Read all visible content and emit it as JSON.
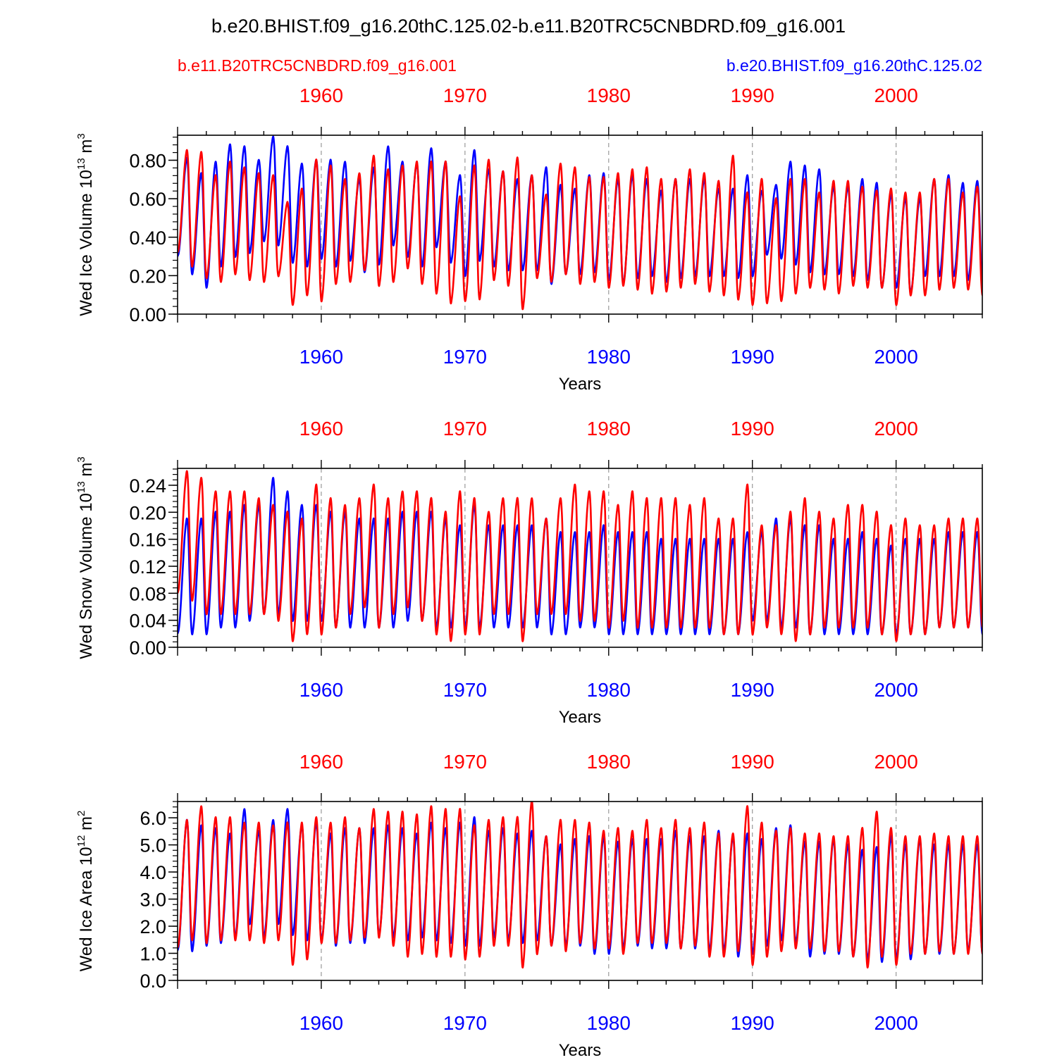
{
  "page_title": "b.e20.BHIST.f09_g16.20thC.125.02-b.e11.B20TRC5CNBDRD.f09_g16.001",
  "legend": {
    "red_label": "b.e11.B20TRC5CNBDRD.f09_g16.001",
    "blue_label": "b.e20.BHIST.f09_g16.20thC.125.02"
  },
  "colors": {
    "red": "#ff0000",
    "blue": "#0000ff",
    "axis": "#000000",
    "grid": "#999999"
  },
  "chart_data": [
    {
      "type": "line",
      "title": "",
      "ylabel_main": "Wed Ice Volume 10",
      "ylabel_exp": "13",
      "ylabel_unit": " m",
      "ylabel_unit_exp": "3",
      "xlabel": "Years",
      "xlim": [
        1950.0,
        2006.0
      ],
      "ylim": [
        0.0,
        0.93
      ],
      "yticks": [
        "0.00",
        "0.20",
        "0.40",
        "0.60",
        "0.80"
      ],
      "ytick_values": [
        0.0,
        0.2,
        0.4,
        0.6,
        0.8
      ],
      "yminor_step": 0.04,
      "xticks": [
        "1960",
        "1970",
        "1980",
        "1990",
        "2000"
      ],
      "xtick_values": [
        1960,
        1970,
        1980,
        1990,
        2000
      ],
      "series": [
        {
          "name": "b.e20.BHIST.f09_g16.20thC.125.02",
          "color": "blue",
          "start_year": 1950.0,
          "maxima": [
            0.81,
            0.73,
            0.79,
            0.88,
            0.87,
            0.8,
            0.92,
            0.87,
            0.78,
            0.8,
            0.8,
            0.79,
            0.7,
            0.76,
            0.87,
            0.79,
            0.78,
            0.86,
            0.79,
            0.72,
            0.85,
            0.75,
            0.74,
            0.7,
            0.72,
            0.76,
            0.67,
            0.65,
            0.72,
            0.73,
            0.7,
            0.72,
            0.7,
            0.64,
            0.7,
            0.7,
            0.7,
            0.65,
            0.65,
            0.72,
            0.64,
            0.67,
            0.79,
            0.77,
            0.75,
            0.66,
            0.66,
            0.7,
            0.68,
            0.62,
            0.6,
            0.6,
            0.7,
            0.72,
            0.68,
            0.69,
            0.67
          ],
          "minima": [
            0.3,
            0.21,
            0.14,
            0.25,
            0.3,
            0.32,
            0.38,
            0.36,
            0.27,
            0.25,
            0.29,
            0.25,
            0.28,
            0.22,
            0.26,
            0.36,
            0.3,
            0.25,
            0.35,
            0.27,
            0.2,
            0.28,
            0.25,
            0.23,
            0.23,
            0.23,
            0.16,
            0.21,
            0.21,
            0.22,
            0.18,
            0.16,
            0.19,
            0.2,
            0.17,
            0.19,
            0.2,
            0.2,
            0.2,
            0.19,
            0.2,
            0.31,
            0.29,
            0.26,
            0.22,
            0.21,
            0.21,
            0.2,
            0.18,
            0.14,
            0.14,
            0.11,
            0.2,
            0.2,
            0.2,
            0.18,
            0.18
          ]
        },
        {
          "name": "b.e11.B20TRC5CNBDRD.f09_g16.001",
          "color": "red",
          "start_year": 1950.0,
          "maxima": [
            0.85,
            0.84,
            0.72,
            0.79,
            0.76,
            0.73,
            0.72,
            0.58,
            0.65,
            0.8,
            0.77,
            0.7,
            0.73,
            0.82,
            0.75,
            0.77,
            0.79,
            0.79,
            0.79,
            0.61,
            0.77,
            0.8,
            0.74,
            0.81,
            0.72,
            0.62,
            0.78,
            0.76,
            0.71,
            0.71,
            0.73,
            0.75,
            0.76,
            0.7,
            0.7,
            0.75,
            0.73,
            0.69,
            0.82,
            0.63,
            0.7,
            0.6,
            0.7,
            0.7,
            0.63,
            0.69,
            0.69,
            0.66,
            0.64,
            0.65,
            0.63,
            0.63,
            0.7,
            0.7,
            0.63,
            0.66,
            0.66
          ],
          "minima": [
            0.32,
            0.25,
            0.19,
            0.17,
            0.21,
            0.18,
            0.17,
            0.2,
            0.05,
            0.1,
            0.07,
            0.16,
            0.17,
            0.23,
            0.15,
            0.17,
            0.24,
            0.16,
            0.11,
            0.06,
            0.07,
            0.08,
            0.18,
            0.15,
            0.03,
            0.19,
            0.17,
            0.21,
            0.16,
            0.17,
            0.14,
            0.15,
            0.13,
            0.11,
            0.12,
            0.14,
            0.16,
            0.12,
            0.1,
            0.08,
            0.05,
            0.06,
            0.07,
            0.11,
            0.14,
            0.13,
            0.11,
            0.15,
            0.14,
            0.14,
            0.05,
            0.1,
            0.1,
            0.13,
            0.14,
            0.13,
            0.1
          ]
        }
      ]
    },
    {
      "type": "line",
      "title": "",
      "ylabel_main": "Wed Snow Volume 10",
      "ylabel_exp": "13",
      "ylabel_unit": " m",
      "ylabel_unit_exp": "3",
      "xlabel": "Years",
      "xlim": [
        1950.0,
        2006.0
      ],
      "ylim": [
        0.0,
        0.265
      ],
      "yticks": [
        "0.00",
        "0.04",
        "0.08",
        "0.12",
        "0.16",
        "0.20",
        "0.24"
      ],
      "ytick_values": [
        0.0,
        0.04,
        0.08,
        0.12,
        0.16,
        0.2,
        0.24
      ],
      "yminor_step": 0.008,
      "xticks": [
        "1960",
        "1970",
        "1980",
        "1990",
        "2000"
      ],
      "xtick_values": [
        1960,
        1970,
        1980,
        1990,
        2000
      ],
      "series": [
        {
          "name": "b.e20.BHIST.f09_g16.20thC.125.02",
          "color": "blue",
          "start_year": 1950.0,
          "maxima": [
            0.19,
            0.19,
            0.2,
            0.2,
            0.21,
            0.21,
            0.25,
            0.23,
            0.21,
            0.21,
            0.2,
            0.2,
            0.19,
            0.19,
            0.19,
            0.2,
            0.2,
            0.2,
            0.19,
            0.18,
            0.21,
            0.18,
            0.18,
            0.18,
            0.18,
            0.19,
            0.17,
            0.17,
            0.17,
            0.18,
            0.17,
            0.17,
            0.17,
            0.16,
            0.16,
            0.16,
            0.16,
            0.16,
            0.16,
            0.17,
            0.17,
            0.19,
            0.19,
            0.18,
            0.18,
            0.16,
            0.16,
            0.17,
            0.16,
            0.15,
            0.16,
            0.16,
            0.16,
            0.17,
            0.17,
            0.17,
            0.17
          ],
          "minima": [
            0.02,
            0.02,
            0.02,
            0.03,
            0.03,
            0.04,
            0.05,
            0.05,
            0.04,
            0.04,
            0.04,
            0.03,
            0.03,
            0.03,
            0.03,
            0.03,
            0.04,
            0.04,
            0.03,
            0.03,
            0.03,
            0.03,
            0.03,
            0.03,
            0.03,
            0.03,
            0.02,
            0.02,
            0.03,
            0.03,
            0.02,
            0.02,
            0.02,
            0.02,
            0.02,
            0.02,
            0.02,
            0.02,
            0.02,
            0.02,
            0.04,
            0.04,
            0.03,
            0.03,
            0.02,
            0.02,
            0.02,
            0.02,
            0.02,
            0.02,
            0.02,
            0.02,
            0.02,
            0.03,
            0.03,
            0.03,
            0.02
          ]
        },
        {
          "name": "b.e11.B20TRC5CNBDRD.f09_g16.001",
          "color": "red",
          "start_year": 1950.0,
          "maxima": [
            0.26,
            0.25,
            0.23,
            0.23,
            0.23,
            0.22,
            0.21,
            0.2,
            0.19,
            0.24,
            0.22,
            0.21,
            0.22,
            0.24,
            0.22,
            0.23,
            0.23,
            0.22,
            0.2,
            0.23,
            0.22,
            0.2,
            0.22,
            0.22,
            0.22,
            0.19,
            0.22,
            0.24,
            0.23,
            0.23,
            0.21,
            0.23,
            0.22,
            0.22,
            0.22,
            0.21,
            0.22,
            0.19,
            0.19,
            0.24,
            0.18,
            0.18,
            0.2,
            0.22,
            0.2,
            0.19,
            0.21,
            0.21,
            0.2,
            0.18,
            0.19,
            0.18,
            0.18,
            0.19,
            0.19,
            0.19,
            0.19
          ],
          "minima": [
            0.08,
            0.07,
            0.05,
            0.05,
            0.05,
            0.05,
            0.05,
            0.04,
            0.01,
            0.02,
            0.02,
            0.03,
            0.05,
            0.06,
            0.03,
            0.05,
            0.06,
            0.04,
            0.02,
            0.01,
            0.02,
            0.02,
            0.05,
            0.05,
            0.01,
            0.05,
            0.05,
            0.05,
            0.04,
            0.04,
            0.03,
            0.04,
            0.03,
            0.03,
            0.03,
            0.03,
            0.03,
            0.03,
            0.02,
            0.02,
            0.02,
            0.03,
            0.02,
            0.01,
            0.02,
            0.03,
            0.03,
            0.03,
            0.03,
            0.02,
            0.01,
            0.02,
            0.02,
            0.03,
            0.03,
            0.03,
            0.03
          ]
        }
      ]
    },
    {
      "type": "line",
      "title": "",
      "ylabel_main": "Wed Ice Area 10",
      "ylabel_exp": "12",
      "ylabel_unit": " m",
      "ylabel_unit_exp": "2",
      "xlabel": "Years",
      "xlim": [
        1950.0,
        2006.0
      ],
      "ylim": [
        0.0,
        6.6
      ],
      "yticks": [
        "0.0",
        "1.0",
        "2.0",
        "3.0",
        "4.0",
        "5.0",
        "6.0"
      ],
      "ytick_values": [
        0.0,
        1.0,
        2.0,
        3.0,
        4.0,
        5.0,
        6.0
      ],
      "yminor_step": 0.2,
      "xticks": [
        "1960",
        "1970",
        "1980",
        "1990",
        "2000"
      ],
      "xtick_values": [
        1960,
        1970,
        1980,
        1990,
        2000
      ],
      "series": [
        {
          "name": "b.e20.BHIST.f09_g16.20thC.125.02",
          "color": "blue",
          "start_year": 1950.0,
          "maxima": [
            5.9,
            5.7,
            5.6,
            5.4,
            6.3,
            5.5,
            5.9,
            6.3,
            5.7,
            5.8,
            5.4,
            5.6,
            5.6,
            5.6,
            5.7,
            5.6,
            5.4,
            5.8,
            5.6,
            5.8,
            6.0,
            5.5,
            5.6,
            5.4,
            5.5,
            5.3,
            5.0,
            5.2,
            5.3,
            5.3,
            5.1,
            5.2,
            5.2,
            5.2,
            5.5,
            5.3,
            5.3,
            5.5,
            5.3,
            5.4,
            5.2,
            5.6,
            5.7,
            5.1,
            5.1,
            5.2,
            5.0,
            4.8,
            4.9,
            5.3,
            5.0,
            5.2,
            5.0,
            5.0,
            5.0,
            5.0,
            5.0
          ],
          "minima": [
            1.1,
            1.1,
            1.3,
            1.4,
            1.6,
            2.1,
            1.6,
            2.1,
            1.7,
            1.5,
            1.5,
            1.3,
            1.4,
            1.4,
            1.7,
            1.6,
            1.5,
            1.6,
            1.5,
            1.4,
            1.3,
            1.3,
            1.6,
            1.5,
            1.4,
            1.5,
            1.3,
            1.3,
            1.3,
            1.0,
            1.0,
            1.2,
            1.3,
            1.2,
            1.2,
            1.2,
            1.2,
            1.1,
            1.1,
            0.9,
            1.0,
            1.3,
            1.5,
            1.4,
            0.9,
            1.0,
            1.0,
            0.9,
            0.8,
            0.7,
            0.8,
            0.8,
            1.0,
            1.0,
            1.0,
            1.1,
            1.0
          ],
          "mid": []
        },
        {
          "name": "b.e11.B20TRC5CNBDRD.f09_g16.001",
          "color": "red",
          "start_year": 1950.0,
          "maxima": [
            5.9,
            6.4,
            6.0,
            6.0,
            5.8,
            5.8,
            5.7,
            5.8,
            5.8,
            6.0,
            5.8,
            6.0,
            5.6,
            6.3,
            6.2,
            6.2,
            6.1,
            6.4,
            6.3,
            6.3,
            5.7,
            5.9,
            6.0,
            6.0,
            6.6,
            5.3,
            5.9,
            5.9,
            5.8,
            5.5,
            5.6,
            5.5,
            5.9,
            5.6,
            5.9,
            5.6,
            5.8,
            5.4,
            5.4,
            6.4,
            5.8,
            5.5,
            5.6,
            5.4,
            5.4,
            5.3,
            5.3,
            5.6,
            6.2,
            5.6,
            5.3,
            5.3,
            5.4,
            5.3,
            5.3,
            5.3,
            5.3
          ],
          "minima": [
            1.2,
            1.5,
            1.4,
            1.5,
            1.5,
            1.5,
            1.4,
            1.5,
            0.6,
            0.8,
            1.4,
            1.4,
            1.5,
            1.6,
            1.6,
            1.3,
            0.9,
            1.0,
            0.9,
            0.9,
            0.8,
            0.9,
            1.3,
            1.3,
            0.5,
            1.0,
            1.3,
            1.1,
            1.4,
            1.2,
            1.2,
            1.0,
            1.4,
            1.4,
            1.4,
            1.2,
            1.3,
            0.9,
            0.9,
            1.1,
            0.6,
            0.9,
            1.1,
            1.2,
            1.2,
            1.1,
            1.1,
            0.9,
            0.5,
            0.9,
            0.6,
            1.0,
            1.0,
            1.1,
            1.0,
            1.0,
            1.0
          ]
        }
      ]
    }
  ]
}
